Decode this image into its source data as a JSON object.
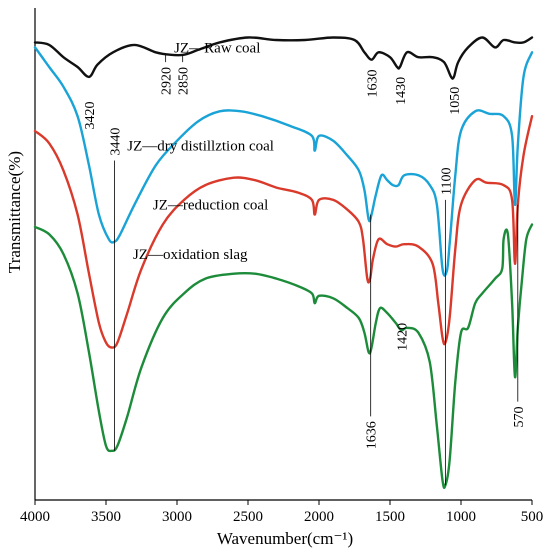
{
  "chart_data": {
    "type": "line",
    "xlabel": "Wavenumber(cm⁻¹)",
    "ylabel": "Transmittance(%)",
    "xlim": [
      4000,
      500
    ],
    "x_reversed": true,
    "xticks": [
      4000,
      3500,
      3000,
      2500,
      2000,
      1500,
      1000,
      500
    ],
    "y_tick_labels": false,
    "grid": false,
    "series": [
      {
        "name": "JZ—Raw coal",
        "color": "#111111",
        "points": [
          [
            4000,
            93
          ],
          [
            3900,
            92.5
          ],
          [
            3800,
            90
          ],
          [
            3700,
            88
          ],
          [
            3620,
            86
          ],
          [
            3560,
            88.5
          ],
          [
            3450,
            91
          ],
          [
            3300,
            92.5
          ],
          [
            3150,
            91
          ],
          [
            3050,
            90.5
          ],
          [
            2950,
            90.5
          ],
          [
            2850,
            91.5
          ],
          [
            2700,
            93
          ],
          [
            2500,
            94
          ],
          [
            2300,
            93.5
          ],
          [
            2100,
            93.5
          ],
          [
            1900,
            94
          ],
          [
            1750,
            93.5
          ],
          [
            1680,
            91
          ],
          [
            1630,
            89.5
          ],
          [
            1580,
            91
          ],
          [
            1500,
            90
          ],
          [
            1450,
            88
          ],
          [
            1430,
            88
          ],
          [
            1380,
            91
          ],
          [
            1300,
            90
          ],
          [
            1200,
            90
          ],
          [
            1120,
            89
          ],
          [
            1070,
            86
          ],
          [
            1050,
            86
          ],
          [
            1020,
            89
          ],
          [
            950,
            92
          ],
          [
            850,
            94
          ],
          [
            760,
            92
          ],
          [
            700,
            93.5
          ],
          [
            620,
            93
          ],
          [
            560,
            93
          ],
          [
            500,
            94
          ]
        ]
      },
      {
        "name": "JZ—dry distillztion coal",
        "color": "#1aa3d6",
        "points": [
          [
            4000,
            92
          ],
          [
            3900,
            88
          ],
          [
            3800,
            84
          ],
          [
            3700,
            78
          ],
          [
            3620,
            68
          ],
          [
            3550,
            58
          ],
          [
            3480,
            53
          ],
          [
            3440,
            52.5
          ],
          [
            3400,
            54
          ],
          [
            3300,
            60
          ],
          [
            3150,
            68
          ],
          [
            3000,
            73
          ],
          [
            2850,
            77
          ],
          [
            2700,
            79
          ],
          [
            2550,
            79
          ],
          [
            2400,
            78
          ],
          [
            2200,
            76
          ],
          [
            2050,
            74
          ],
          [
            2030,
            71
          ],
          [
            2000,
            74
          ],
          [
            1900,
            73
          ],
          [
            1800,
            70
          ],
          [
            1720,
            67
          ],
          [
            1680,
            63
          ],
          [
            1650,
            57
          ],
          [
            1630,
            58
          ],
          [
            1600,
            62
          ],
          [
            1560,
            66
          ],
          [
            1520,
            65
          ],
          [
            1480,
            64
          ],
          [
            1440,
            64
          ],
          [
            1400,
            66
          ],
          [
            1300,
            66
          ],
          [
            1220,
            64
          ],
          [
            1170,
            60
          ],
          [
            1130,
            47
          ],
          [
            1100,
            46.5
          ],
          [
            1080,
            52
          ],
          [
            1040,
            66
          ],
          [
            1000,
            75
          ],
          [
            900,
            79
          ],
          [
            800,
            78.5
          ],
          [
            700,
            78
          ],
          [
            640,
            74
          ],
          [
            620,
            60
          ],
          [
            600,
            72
          ],
          [
            560,
            86
          ],
          [
            500,
            91
          ]
        ]
      },
      {
        "name": "JZ—reduction coal",
        "color": "#d93a2b",
        "points": [
          [
            4000,
            75
          ],
          [
            3900,
            72.5
          ],
          [
            3800,
            67
          ],
          [
            3700,
            58
          ],
          [
            3620,
            46
          ],
          [
            3550,
            36
          ],
          [
            3500,
            32
          ],
          [
            3460,
            31
          ],
          [
            3420,
            32
          ],
          [
            3350,
            38
          ],
          [
            3250,
            47
          ],
          [
            3100,
            56
          ],
          [
            2950,
            61
          ],
          [
            2800,
            64
          ],
          [
            2600,
            65.5
          ],
          [
            2450,
            65
          ],
          [
            2300,
            63.5
          ],
          [
            2150,
            62.5
          ],
          [
            2050,
            61
          ],
          [
            2030,
            58
          ],
          [
            2000,
            61
          ],
          [
            1900,
            61
          ],
          [
            1800,
            59
          ],
          [
            1720,
            56.5
          ],
          [
            1690,
            53
          ],
          [
            1660,
            45
          ],
          [
            1640,
            45
          ],
          [
            1620,
            49
          ],
          [
            1580,
            53
          ],
          [
            1520,
            52
          ],
          [
            1460,
            51.5
          ],
          [
            1400,
            52
          ],
          [
            1300,
            51.5
          ],
          [
            1200,
            48
          ],
          [
            1160,
            40
          ],
          [
            1130,
            33
          ],
          [
            1110,
            32
          ],
          [
            1080,
            37
          ],
          [
            1040,
            51
          ],
          [
            1000,
            60
          ],
          [
            900,
            65
          ],
          [
            820,
            64.5
          ],
          [
            700,
            64
          ],
          [
            640,
            61
          ],
          [
            620,
            48
          ],
          [
            600,
            60
          ],
          [
            560,
            70
          ],
          [
            500,
            78
          ]
        ]
      },
      {
        "name": "JZ—oxidation  slag",
        "color": "#1d8c3a",
        "points": [
          [
            4000,
            55.5
          ],
          [
            3900,
            54
          ],
          [
            3800,
            50
          ],
          [
            3700,
            42
          ],
          [
            3620,
            30
          ],
          [
            3550,
            18
          ],
          [
            3500,
            11
          ],
          [
            3460,
            10
          ],
          [
            3420,
            11
          ],
          [
            3350,
            17
          ],
          [
            3250,
            27
          ],
          [
            3100,
            37
          ],
          [
            2950,
            42
          ],
          [
            2800,
            45
          ],
          [
            2600,
            46
          ],
          [
            2450,
            46
          ],
          [
            2300,
            45
          ],
          [
            2150,
            43.5
          ],
          [
            2050,
            42
          ],
          [
            2030,
            40
          ],
          [
            2000,
            41.5
          ],
          [
            1900,
            41
          ],
          [
            1800,
            39
          ],
          [
            1720,
            37
          ],
          [
            1680,
            34
          ],
          [
            1650,
            30
          ],
          [
            1630,
            31
          ],
          [
            1600,
            36
          ],
          [
            1570,
            39
          ],
          [
            1520,
            38
          ],
          [
            1460,
            36
          ],
          [
            1420,
            34.5
          ],
          [
            1380,
            35
          ],
          [
            1300,
            34
          ],
          [
            1220,
            28
          ],
          [
            1170,
            15
          ],
          [
            1130,
            4
          ],
          [
            1110,
            3
          ],
          [
            1080,
            8
          ],
          [
            1040,
            24
          ],
          [
            1000,
            34
          ],
          [
            950,
            35
          ],
          [
            900,
            40
          ],
          [
            850,
            42
          ],
          [
            760,
            45
          ],
          [
            710,
            47
          ],
          [
            700,
            53
          ],
          [
            670,
            54
          ],
          [
            640,
            40
          ],
          [
            620,
            25
          ],
          [
            600,
            35
          ],
          [
            570,
            45
          ],
          [
            540,
            53
          ],
          [
            500,
            56
          ]
        ]
      }
    ],
    "series_labels": [
      {
        "text": "JZ—Raw coal",
        "x": 3020,
        "y": 91
      },
      {
        "text": "JZ—dry distillztion coal",
        "x": 3350,
        "y": 71
      },
      {
        "text": "JZ—reduction coal",
        "x": 3170,
        "y": 59
      },
      {
        "text": "JZ—oxidation  slag",
        "x": 3310,
        "y": 49
      }
    ],
    "annotations": [
      {
        "label": "3420",
        "x": 3620,
        "line_y": [
          86,
          86
        ],
        "text_y": 81,
        "anchor": "end"
      },
      {
        "label": "2920",
        "x": 3080,
        "line_y": [
          89,
          90.5
        ],
        "text_y": 88,
        "anchor": "end"
      },
      {
        "label": "2850",
        "x": 2960,
        "line_y": [
          89,
          90.5
        ],
        "text_y": 88,
        "anchor": "end"
      },
      {
        "label": "1630",
        "x": 1630,
        "line_y": [
          89.5,
          89.5
        ],
        "text_y": 87.5,
        "anchor": "end"
      },
      {
        "label": "1430",
        "x": 1430,
        "line_y": [
          88,
          88
        ],
        "text_y": 86,
        "anchor": "end"
      },
      {
        "label": "1050",
        "x": 1050,
        "line_y": [
          86,
          86
        ],
        "text_y": 84,
        "anchor": "end"
      },
      {
        "label": "3440",
        "x": 3440,
        "line_y": [
          10,
          69
        ],
        "text_y": 70,
        "anchor": "start"
      },
      {
        "label": "1100",
        "x": 1110,
        "line_y": [
          3,
          61
        ],
        "text_y": 62,
        "anchor": "start"
      },
      {
        "label": "1420",
        "x": 1420,
        "line_y": [
          34.5,
          34.5
        ],
        "text_y": 36,
        "anchor": "end"
      },
      {
        "label": "1636",
        "x": 1636,
        "line_y": [
          17,
          58
        ],
        "text_y": 16,
        "anchor": "end"
      },
      {
        "label": "570",
        "x": 600,
        "line_y": [
          20,
          60
        ],
        "text_y": 19,
        "anchor": "end"
      }
    ]
  }
}
